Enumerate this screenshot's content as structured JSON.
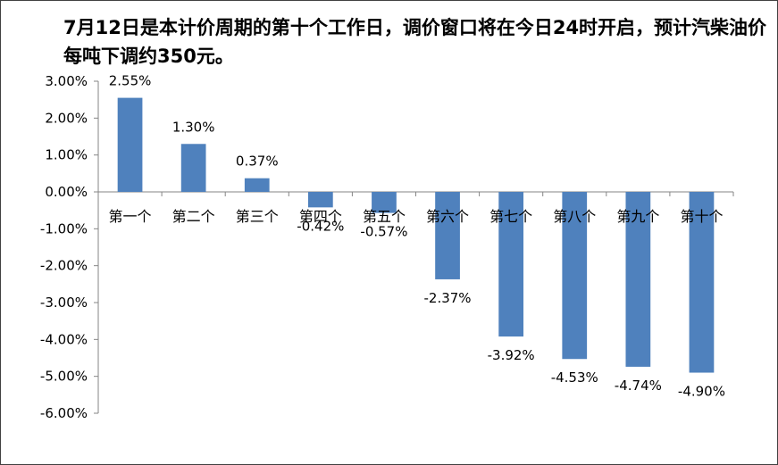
{
  "chart_data": {
    "type": "bar",
    "title": "7月12日是本计价周期的第十个工作日，调价窗口将在今日24时开启，预计汽柴油价每吨下调约350元。",
    "categories": [
      "第一个",
      "第二个",
      "第三个",
      "第四个",
      "第五个",
      "第六个",
      "第七个",
      "第八个",
      "第九个",
      "第十个"
    ],
    "values": [
      2.55,
      1.3,
      0.37,
      -0.42,
      -0.57,
      -2.37,
      -3.92,
      -4.53,
      -4.74,
      -4.9
    ],
    "value_labels": [
      "2.55%",
      "1.30%",
      "0.37%",
      "-0.42%",
      "-0.57%",
      "-2.37%",
      "-3.92%",
      "-4.53%",
      "-4.74%",
      "-4.90%"
    ],
    "yticks": [
      3,
      2,
      1,
      0,
      -1,
      -2,
      -3,
      -4,
      -5,
      -6
    ],
    "ytick_labels": [
      "3.00%",
      "2.00%",
      "1.00%",
      "0.00%",
      "-1.00%",
      "-2.00%",
      "-3.00%",
      "-4.00%",
      "-5.00%",
      "-6.00%"
    ],
    "ylim": [
      -6,
      3
    ],
    "xlabel": "",
    "ylabel": "",
    "grid": false,
    "legend": "none",
    "bar_color": "#4F81BD"
  }
}
